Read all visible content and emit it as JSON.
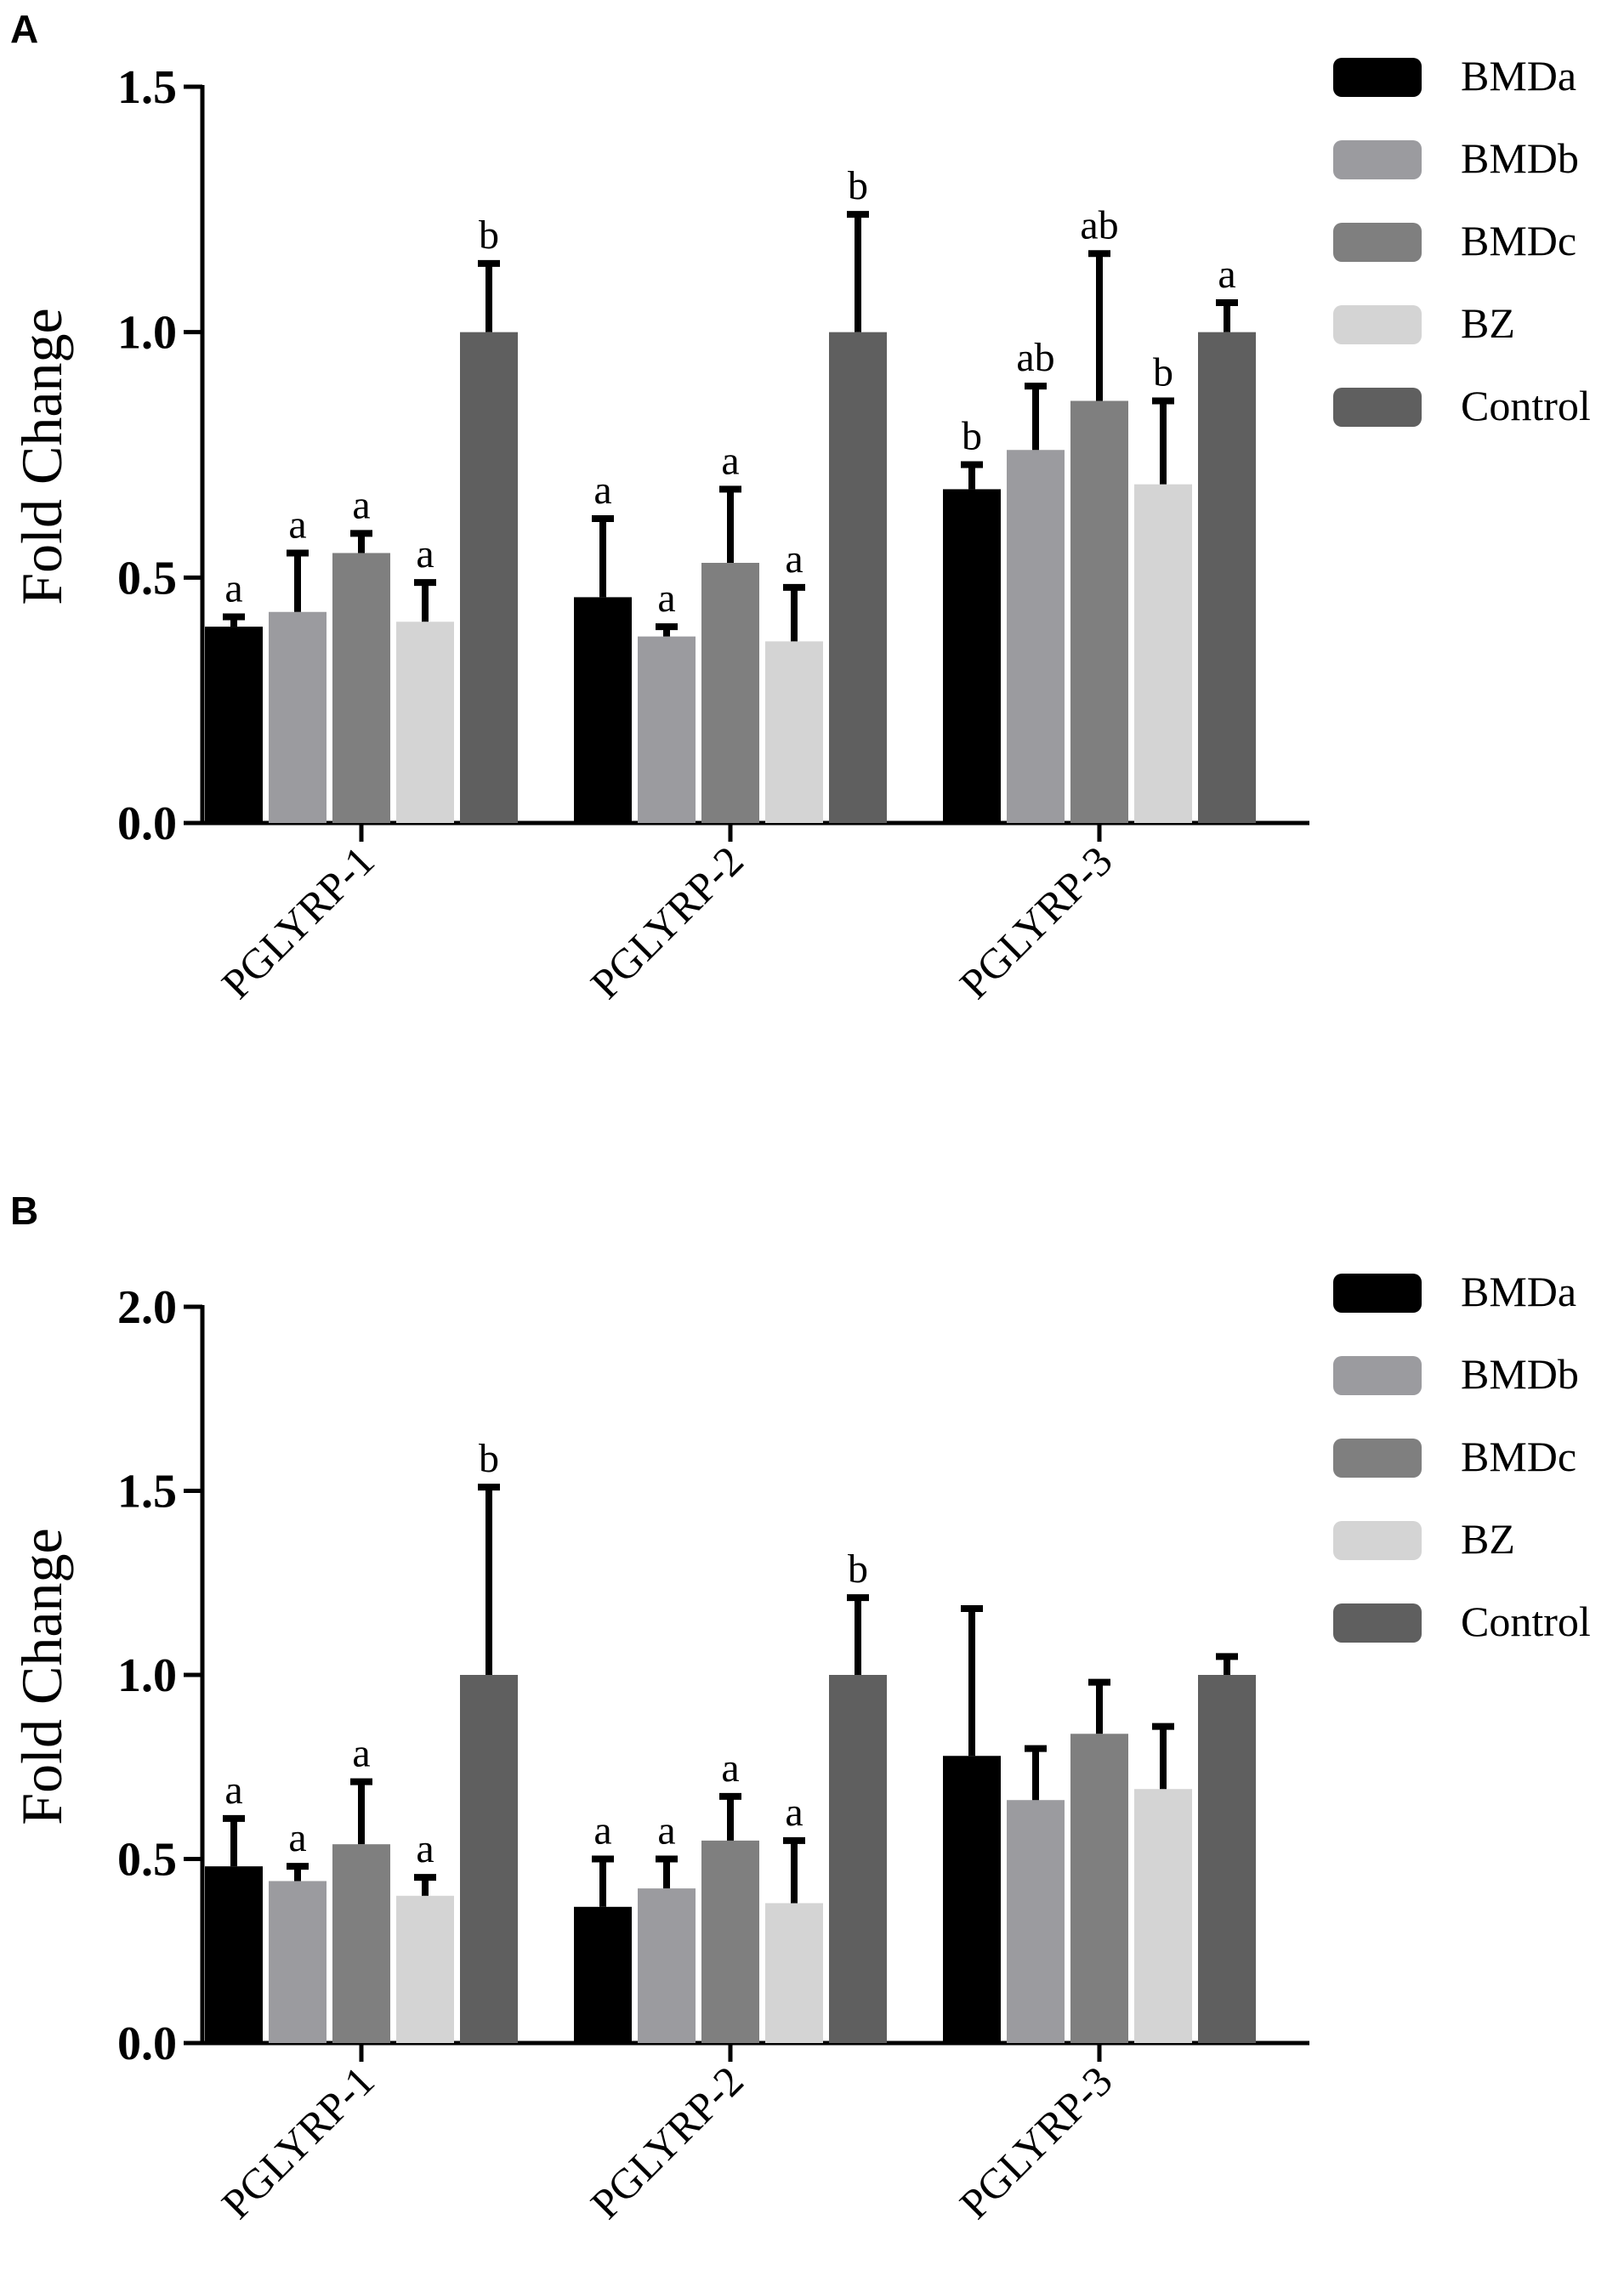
{
  "chart_data": [
    {
      "type": "bar",
      "panel": "A",
      "ylabel": "Fold Change",
      "xlabel": "",
      "ylim": [
        0,
        1.5
      ],
      "yticks": [
        "0.0",
        "0.5",
        "1.0",
        "1.5"
      ],
      "categories": [
        "PGLYRP-1",
        "PGLYRP-2",
        "PGLYRP-3"
      ],
      "series": [
        {
          "name": "BMDa",
          "color": "#000000",
          "values": [
            0.4,
            0.46,
            0.68
          ],
          "errors": [
            0.02,
            0.16,
            0.05
          ],
          "labels": [
            "a",
            "a",
            "b"
          ]
        },
        {
          "name": "BMDb",
          "color": "#9b9b9f",
          "values": [
            0.43,
            0.38,
            0.76
          ],
          "errors": [
            0.12,
            0.02,
            0.13
          ],
          "labels": [
            "a",
            "a",
            "ab"
          ]
        },
        {
          "name": "BMDc",
          "color": "#7f7f7f",
          "values": [
            0.55,
            0.53,
            0.86
          ],
          "errors": [
            0.04,
            0.15,
            0.3
          ],
          "labels": [
            "a",
            "a",
            "ab"
          ]
        },
        {
          "name": "BZ",
          "color": "#d4d4d4",
          "values": [
            0.41,
            0.37,
            0.69
          ],
          "errors": [
            0.08,
            0.11,
            0.17
          ],
          "labels": [
            "a",
            "a",
            "b"
          ]
        },
        {
          "name": "Control",
          "color": "#5f5f5f",
          "values": [
            1.0,
            1.0,
            1.0
          ],
          "errors": [
            0.14,
            0.24,
            0.06
          ],
          "labels": [
            "b",
            "b",
            "a"
          ]
        }
      ]
    },
    {
      "type": "bar",
      "panel": "B",
      "ylabel": "Fold Change",
      "xlabel": "",
      "ylim": [
        0,
        2.0
      ],
      "yticks": [
        "0.0",
        "0.5",
        "1.0",
        "1.5",
        "2.0"
      ],
      "categories": [
        "PGLYRP-1",
        "PGLYRP-2",
        "PGLYRP-3"
      ],
      "series": [
        {
          "name": "BMDa",
          "color": "#000000",
          "values": [
            0.48,
            0.37,
            0.78
          ],
          "errors": [
            0.13,
            0.13,
            0.4
          ],
          "labels": [
            "a",
            "a",
            ""
          ]
        },
        {
          "name": "BMDb",
          "color": "#9b9b9f",
          "values": [
            0.44,
            0.42,
            0.66
          ],
          "errors": [
            0.04,
            0.08,
            0.14
          ],
          "labels": [
            "a",
            "a",
            ""
          ]
        },
        {
          "name": "BMDc",
          "color": "#7f7f7f",
          "values": [
            0.54,
            0.55,
            0.84
          ],
          "errors": [
            0.17,
            0.12,
            0.14
          ],
          "labels": [
            "a",
            "a",
            ""
          ]
        },
        {
          "name": "BZ",
          "color": "#d4d4d4",
          "values": [
            0.4,
            0.38,
            0.69
          ],
          "errors": [
            0.05,
            0.17,
            0.17
          ],
          "labels": [
            "a",
            "a",
            ""
          ]
        },
        {
          "name": "Control",
          "color": "#5f5f5f",
          "values": [
            1.0,
            1.0,
            1.0
          ],
          "errors": [
            0.51,
            0.21,
            0.05
          ],
          "labels": [
            "b",
            "b",
            ""
          ]
        }
      ]
    }
  ]
}
